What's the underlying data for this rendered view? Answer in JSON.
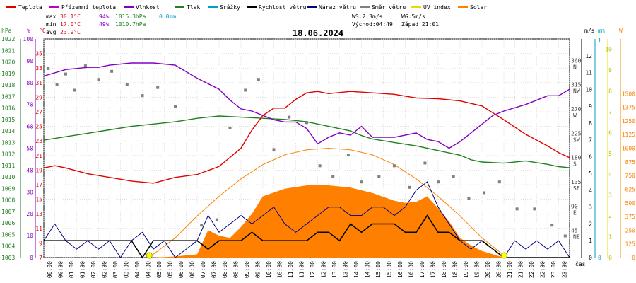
{
  "chart_data": {
    "type": "line",
    "title": "18.06.2024",
    "legend_placement": "top",
    "legend": [
      {
        "name": "Teplota",
        "color": "#e00000"
      },
      {
        "name": "Přízemní teplota",
        "color": "#c000c0"
      },
      {
        "name": "Vlhkost",
        "color": "#8000c0"
      },
      {
        "name": "Tlak",
        "color": "#208020"
      },
      {
        "name": "Srážky",
        "color": "#00a0c0"
      },
      {
        "name": "Rychlost větru",
        "color": "#000000"
      },
      {
        "name": "Náraz větru",
        "color": "#000080"
      },
      {
        "name": "Směr větru",
        "color": "#808080"
      },
      {
        "name": "UV index",
        "color": "#e0e000"
      },
      {
        "name": "Solar",
        "color": "#ff8000"
      }
    ],
    "stats": {
      "max": {
        "label": "max",
        "temp": "30.1°C",
        "hum": "94%",
        "press": "1015.3hPa",
        "rain": "0.0mm"
      },
      "min": {
        "label": "min",
        "temp": "17.0°C",
        "hum": "49%",
        "press": "1010.7hPa"
      },
      "avg": {
        "label": "avg",
        "temp": "23.9°C"
      }
    },
    "wind_info": {
      "ws": "WS:2.3m/s",
      "wg": "WG:5m/s",
      "sunrise": "Východ:04:49",
      "sunset": "Západ:21:01"
    },
    "axes": {
      "hpa": {
        "unit": "hPa",
        "min": 1003,
        "max": 1022,
        "ticks": [
          "1003",
          "1004",
          "1005",
          "1006",
          "1007",
          "1008",
          "1009",
          "1010",
          "1011",
          "1012",
          "1013",
          "1014",
          "1015",
          "1016",
          "1017",
          "1018",
          "1019",
          "1020",
          "1021",
          "1022"
        ]
      },
      "percent": {
        "unit": "%",
        "min": 0,
        "max": 100,
        "ticks": [
          "100",
          "90",
          "80",
          "70",
          "60",
          "50",
          "40",
          "30",
          "20",
          "10",
          "0"
        ]
      },
      "celsius": {
        "unit": "°C",
        "min": 7,
        "max": 37,
        "ticks": [
          "35",
          "33",
          "31",
          "29",
          "27",
          "25",
          "23",
          "21",
          "19",
          "17",
          "15",
          "13",
          "11",
          "9",
          "7"
        ]
      },
      "direction": {
        "ticks": [
          [
            "360",
            "N"
          ],
          [
            "315",
            "NW"
          ],
          [
            "270",
            "W"
          ],
          [
            "225",
            "SW"
          ],
          [
            "180",
            "S"
          ],
          [
            "135",
            "SE"
          ],
          [
            "90",
            "E"
          ],
          [
            "45",
            "NE"
          ]
        ]
      },
      "ms": {
        "unit": "m/s",
        "min": 0,
        "max": 13,
        "ticks": [
          "0",
          "1",
          "2",
          "3",
          "4",
          "5",
          "6",
          "7",
          "8",
          "9",
          "10",
          "11",
          "12"
        ]
      },
      "mm": {
        "unit": "mm",
        "ticks": [
          "0",
          "1"
        ]
      },
      "uv": {
        "ticks": [
          "0",
          "1",
          "2",
          "3",
          "4",
          "5",
          "6",
          "7",
          "8",
          "9",
          "10"
        ]
      },
      "watt": {
        "unit": "W",
        "min": 0,
        "max": 2000,
        "ticks": [
          "0",
          "125",
          "250",
          "375",
          "500",
          "625",
          "750",
          "875",
          "1000",
          "1125",
          "1250",
          "1375",
          "1500"
        ]
      },
      "time": {
        "unit": "čas",
        "ticks": [
          "00:00",
          "00:30",
          "01:00",
          "01:30",
          "02:00",
          "02:30",
          "03:00",
          "03:30",
          "04:00",
          "04:30",
          "05:00",
          "05:30",
          "06:00",
          "06:30",
          "07:00",
          "07:30",
          "08:00",
          "08:30",
          "09:00",
          "09:30",
          "10:00",
          "10:30",
          "11:00",
          "11:30",
          "12:00",
          "12:30",
          "13:00",
          "13:30",
          "14:00",
          "14:30",
          "15:00",
          "15:30",
          "16:00",
          "16:30",
          "17:00",
          "17:30",
          "18:00",
          "18:30",
          "19:00",
          "19:30",
          "20:00",
          "20:30",
          "21:00",
          "21:30",
          "22:00",
          "22:30",
          "23:00",
          "23:30"
        ]
      }
    },
    "series": {
      "temperature": {
        "x": [
          0,
          0.5,
          1,
          2,
          3,
          4,
          5,
          6,
          7,
          8,
          9,
          9.5,
          10,
          10.5,
          11,
          11.5,
          12,
          12.5,
          13,
          14,
          15,
          16,
          17,
          18,
          19,
          20,
          21,
          22,
          23,
          23.5,
          24
        ],
        "y": [
          19.3,
          19.6,
          19.3,
          18.5,
          18,
          17.5,
          17.2,
          18,
          18.4,
          19.5,
          22,
          24.5,
          26.5,
          27.5,
          27.5,
          28.7,
          29.6,
          29.8,
          29.5,
          29.8,
          29.6,
          29.4,
          28.9,
          28.8,
          28.5,
          27.8,
          25.9,
          23.9,
          22.3,
          21.4,
          20.7
        ]
      },
      "humidity": {
        "x": [
          0,
          1,
          2,
          2.5,
          3,
          4,
          5,
          6,
          6.5,
          7,
          8,
          8.5,
          9,
          9.5,
          10,
          10.5,
          11,
          11.5,
          12,
          12.5,
          13,
          13.5,
          14,
          14.5,
          15,
          16,
          17,
          17.5,
          18,
          18.5,
          19,
          19.5,
          20,
          20.5,
          21,
          22,
          23,
          23.5,
          24
        ],
        "y": [
          83,
          86,
          87,
          87,
          88,
          89,
          89,
          88,
          85,
          82,
          77,
          72,
          68,
          67,
          65,
          63,
          62,
          62,
          59,
          52,
          55,
          57,
          56,
          60,
          55,
          55,
          57,
          54,
          53,
          50,
          53,
          57,
          61,
          65,
          67,
          70,
          74,
          74,
          77
        ]
      },
      "pressure": {
        "x": [
          0,
          1,
          2,
          3,
          4,
          5,
          6,
          7,
          8,
          9,
          10,
          11,
          12,
          13,
          14,
          14.5,
          15,
          16,
          17,
          18,
          19,
          19.5,
          20,
          21,
          22,
          23,
          23.5,
          24
        ],
        "y": [
          1013.2,
          1013.5,
          1013.8,
          1014.1,
          1014.4,
          1014.6,
          1014.8,
          1015.1,
          1015.3,
          1015.2,
          1015.1,
          1015,
          1014.8,
          1014.4,
          1014,
          1013.6,
          1013.3,
          1013,
          1012.7,
          1012.3,
          1011.9,
          1011.5,
          1011.3,
          1011.2,
          1011.4,
          1011.1,
          1010.9,
          1010.8
        ]
      },
      "solar": {
        "x": [
          0,
          5,
          6,
          7,
          7.5,
          8,
          8.5,
          9,
          9.5,
          10,
          11,
          12,
          13,
          14,
          15,
          16,
          16.5,
          17,
          17.5,
          18,
          18.5,
          19,
          19.5,
          20,
          20.5,
          21,
          24
        ],
        "y": [
          0,
          0,
          10,
          30,
          250,
          200,
          180,
          280,
          400,
          560,
          630,
          660,
          660,
          640,
          590,
          520,
          500,
          510,
          560,
          450,
          330,
          180,
          110,
          60,
          30,
          0,
          0
        ]
      },
      "solar_clear": {
        "x": [
          4.8,
          6,
          7,
          8,
          9,
          10,
          11,
          12,
          13,
          14,
          15,
          16,
          17,
          18,
          19,
          20,
          21,
          21.1
        ],
        "y": [
          0,
          180,
          380,
          560,
          720,
          850,
          940,
          985,
          1000,
          985,
          940,
          850,
          720,
          560,
          380,
          180,
          20,
          0
        ]
      },
      "wind_speed": {
        "x": [
          0,
          2,
          4,
          4.5,
          5,
          7,
          7.5,
          8,
          9,
          9.5,
          10,
          11,
          12,
          12.5,
          13,
          13.5,
          14,
          14.5,
          15,
          16,
          16.5,
          17,
          17.5,
          18,
          18.5,
          19,
          20,
          20.5,
          21,
          22,
          24
        ],
        "y": [
          1,
          1,
          1,
          0,
          1,
          1,
          0.5,
          1,
          1,
          1.5,
          1,
          1,
          1,
          1.5,
          1.5,
          1,
          2,
          1.5,
          2,
          2,
          1.5,
          1.5,
          2.5,
          1.5,
          1.5,
          1,
          1,
          0.5,
          0,
          0,
          0
        ]
      },
      "wind_gust": {
        "x": [
          0,
          0.5,
          1,
          1.5,
          2,
          2.5,
          3,
          3.5,
          4,
          4.5,
          5,
          5.5,
          6,
          6.5,
          7,
          7.5,
          8,
          8.5,
          9,
          9.5,
          10,
          10.5,
          11,
          11.5,
          12,
          12.5,
          13,
          13.5,
          14,
          14.5,
          15,
          15.5,
          16,
          16.5,
          17,
          17.5,
          18,
          18.5,
          19,
          19.5,
          20,
          20.5,
          21,
          21.5,
          22,
          22.5,
          23,
          23.5,
          24
        ],
        "y": [
          1,
          2,
          1,
          0.5,
          1,
          0.5,
          1,
          0,
          1,
          1.5,
          0.5,
          1,
          0,
          0.5,
          1,
          2.5,
          1.5,
          2,
          2.5,
          2,
          2.5,
          3,
          2,
          1.5,
          2,
          2.5,
          3,
          3,
          2.5,
          2.5,
          3,
          3,
          2.5,
          3,
          4,
          4.5,
          3,
          2,
          1,
          0.5,
          1,
          0.5,
          0,
          1,
          0.5,
          1,
          0.5,
          1,
          0
        ]
      },
      "wind_direction": {
        "x": [
          0.2,
          0.6,
          1,
          1.4,
          1.9,
          2.5,
          3.1,
          3.8,
          4.5,
          5.2,
          6,
          7.2,
          7.9,
          8.5,
          9.2,
          9.8,
          10.5,
          11.2,
          12,
          12.6,
          13.2,
          13.9,
          14.5,
          15.3,
          16,
          16.7,
          17.4,
          18,
          18.7,
          19.4,
          20.1,
          20.8,
          21.6,
          22.4,
          23.2,
          23.8
        ],
        "y": [
          350,
          320,
          340,
          310,
          355,
          330,
          345,
          320,
          300,
          315,
          280,
          60,
          70,
          240,
          310,
          330,
          200,
          260,
          250,
          170,
          150,
          190,
          140,
          150,
          170,
          130,
          175,
          140,
          150,
          110,
          120,
          140,
          90,
          90,
          60,
          40
        ]
      }
    }
  }
}
